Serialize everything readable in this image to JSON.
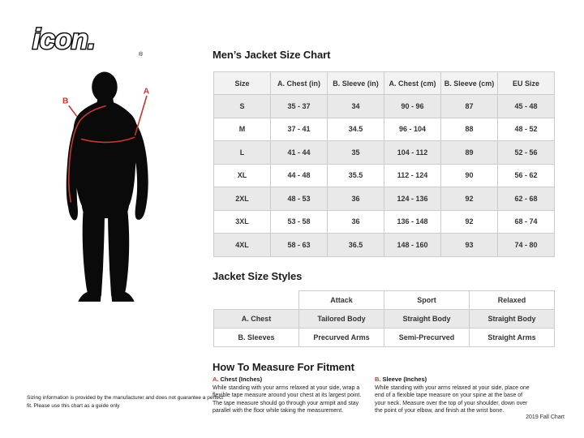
{
  "logo": {
    "text": "icon.",
    "reg": "®"
  },
  "figure": {
    "label_a": "A",
    "label_b": "B"
  },
  "size_chart": {
    "title": "Men’s Jacket Size Chart",
    "columns": [
      "Size",
      "A. Chest (in)",
      "B. Sleeve (in)",
      "A. Chest (cm)",
      "B. Sleeve (cm)",
      "EU Size"
    ],
    "rows": [
      [
        "S",
        "35 - 37",
        "34",
        "90 - 96",
        "87",
        "45 - 48"
      ],
      [
        "M",
        "37 - 41",
        "34.5",
        "96 - 104",
        "88",
        "48 - 52"
      ],
      [
        "L",
        "41 - 44",
        "35",
        "104 - 112",
        "89",
        "52 - 56"
      ],
      [
        "XL",
        "44 - 48",
        "35.5",
        "112 - 124",
        "90",
        "56 - 62"
      ],
      [
        "2XL",
        "48 - 53",
        "36",
        "124 - 136",
        "92",
        "62 - 68"
      ],
      [
        "3XL",
        "53 - 58",
        "36",
        "136 - 148",
        "92",
        "68 - 74"
      ],
      [
        "4XL",
        "58 - 63",
        "36.5",
        "148 - 160",
        "93",
        "74 - 80"
      ]
    ]
  },
  "styles_chart": {
    "title": "Jacket Size Styles",
    "columns": [
      "",
      "Attack",
      "Sport",
      "Relaxed"
    ],
    "rows": [
      [
        "A. Chest",
        "Tailored Body",
        "Straight Body",
        "Straight Body"
      ],
      [
        "B. Sleeves",
        "Precurved Arms",
        "Semi-Precurved",
        "Straight Arms"
      ]
    ]
  },
  "measure": {
    "title": "How To Measure For Fitment",
    "items": [
      {
        "prefix": "A.",
        "heading": "Chest (Inches)",
        "body": "While standing with your arms relaxed at your side, wrap a flexible tape measure around your chest at its largest point. The tape measure should go through your armpit and stay parallel with the floor while taking the measurement."
      },
      {
        "prefix": "B.",
        "heading": "Sleeve (Inches)",
        "body": "While standing with your arms relaxed at your side, place one end of a flexible tape measure on your spine at the base of your neck. Measure over the top of your shoulder, down over the point of your elbow, and finish at the wrist bone."
      }
    ]
  },
  "footer": {
    "disclaimer": "Sizing information is provided by the manufacturer and does not guarantee a perfect fit. Please use this chart as a guide only",
    "chart_version": "2019 Fall Chart"
  },
  "colors": {
    "accent_red": "#c13832",
    "row_shade": "#e9e9e9",
    "header_shade": "#f2f2f2",
    "table_border": "#cccccc",
    "silhouette": "#0a0a0a"
  }
}
